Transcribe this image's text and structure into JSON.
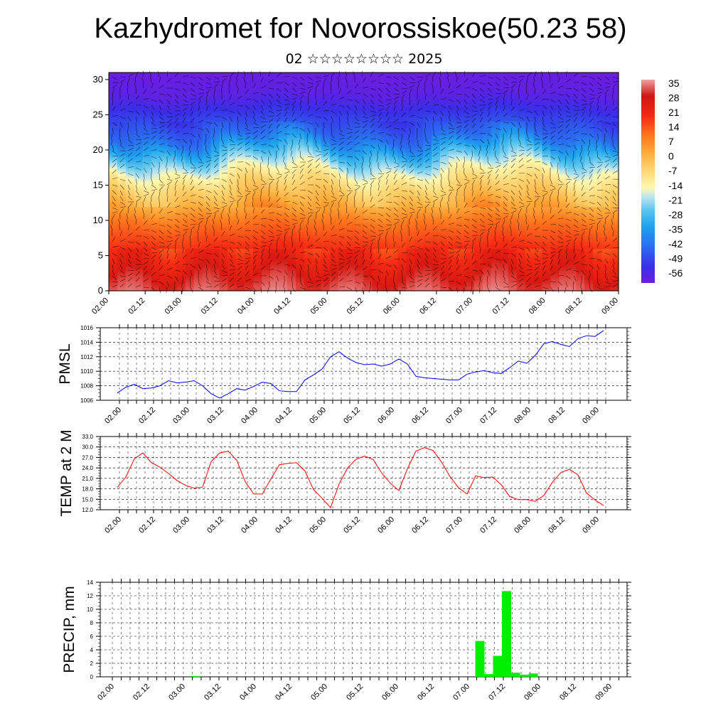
{
  "header": {
    "title": "Kazhydromet for Novorossiskoe(50.23 58)",
    "subtitle": "02 ☆☆☆☆☆☆☆☆ 2025"
  },
  "chart_data": [
    {
      "type": "heatmap",
      "title": "",
      "xlabel": "",
      "ylabel": "",
      "x_ticks": [
        "02.00",
        "02.12",
        "03.00",
        "03.12",
        "04.00",
        "04.12",
        "05.00",
        "05.12",
        "06.00",
        "06.12",
        "07.00",
        "07.12",
        "08.00",
        "08.12",
        "09.00"
      ],
      "y_ticks": [
        0,
        5,
        10,
        15,
        20,
        25,
        30
      ],
      "ylim": [
        0,
        31
      ],
      "colorbar": {
        "labels": [
          35,
          28,
          21,
          14,
          7,
          0,
          -7,
          -14,
          -21,
          -28,
          -35,
          -42,
          -49,
          -56
        ],
        "range": [
          -60,
          38
        ]
      },
      "temperature_profile": {
        "heights": [
          0,
          5,
          10,
          12,
          15,
          17,
          20,
          22,
          25,
          28,
          31
        ],
        "values": [
          33,
          22,
          12,
          5,
          -4,
          -12,
          -30,
          -42,
          -50,
          -58,
          -60
        ]
      },
      "overlay": "wind barbs"
    },
    {
      "type": "line",
      "ylabel": "PMSL",
      "ylim": [
        1006,
        1016
      ],
      "y_ticks": [
        1006,
        1008,
        1010,
        1012,
        1014,
        1016
      ],
      "x_ticks": [
        "02.00",
        "02.12",
        "03.00",
        "03.12",
        "04.00",
        "04.12",
        "05.00",
        "05.12",
        "06.00",
        "06.12",
        "07.00",
        "07.12",
        "08.00",
        "08.12",
        "09.00"
      ],
      "series": [
        {
          "color": "#0000ff",
          "values": [
            1007.0,
            1007.8,
            1008.2,
            1007.6,
            1007.7,
            1008.0,
            1008.7,
            1008.4,
            1008.5,
            1008.7,
            1008.0,
            1006.9,
            1006.3,
            1006.9,
            1007.6,
            1007.4,
            1007.9,
            1008.5,
            1008.3,
            1007.3,
            1007.2,
            1007.2,
            1008.8,
            1009.5,
            1010.3,
            1012.0,
            1012.7,
            1011.8,
            1011.2,
            1010.9,
            1011.0,
            1010.7,
            1011.0,
            1011.7,
            1011.0,
            1009.3,
            1009.1,
            1009.0,
            1008.9,
            1008.8,
            1008.8,
            1009.6,
            1009.9,
            1010.1,
            1009.8,
            1009.7,
            1010.5,
            1011.4,
            1011.1,
            1012.2,
            1013.8,
            1014.1,
            1013.7,
            1013.4,
            1014.5,
            1014.9,
            1014.8,
            1015.6
          ]
        }
      ]
    },
    {
      "type": "line",
      "ylabel": "TEMP at 2 M",
      "ylim": [
        12,
        33
      ],
      "y_ticks": [
        "12.0",
        "15.0",
        "18.0",
        "21.0",
        "24.0",
        "27.0",
        "30.0",
        "33.0"
      ],
      "x_ticks": [
        "02.00",
        "02.12",
        "03.00",
        "03.12",
        "04.00",
        "04.12",
        "05.00",
        "05.12",
        "06.00",
        "06.12",
        "07.00",
        "07.12",
        "08.00",
        "08.12",
        "09.00"
      ],
      "series": [
        {
          "color": "#ff0000",
          "values": [
            18.4,
            21.4,
            26.6,
            28.3,
            25.5,
            24.2,
            22.4,
            20.4,
            19.0,
            18.2,
            18.5,
            25.8,
            28.3,
            28.8,
            26.2,
            20.0,
            16.5,
            16.5,
            20.8,
            24.9,
            25.3,
            25.5,
            23.1,
            17.8,
            15.3,
            12.6,
            19.4,
            24.0,
            26.5,
            27.4,
            26.4,
            22.5,
            19.6,
            17.5,
            23.7,
            28.8,
            29.8,
            29.0,
            25.7,
            21.5,
            18.3,
            16.5,
            21.7,
            21.2,
            21.4,
            19.2,
            15.8,
            14.9,
            14.9,
            14.4,
            16.1,
            19.9,
            22.7,
            23.6,
            22.0,
            16.8,
            14.8,
            13.2
          ]
        }
      ]
    },
    {
      "type": "bar",
      "ylabel": "PRECIP, mm",
      "ylim": [
        0,
        14
      ],
      "y_ticks": [
        0,
        2,
        4,
        6,
        8,
        10,
        12,
        14
      ],
      "x_ticks": [
        "02.00",
        "02.12",
        "03.00",
        "03.12",
        "04.00",
        "04.12",
        "05.00",
        "05.12",
        "06.00",
        "06.12",
        "07.00",
        "07.12",
        "08.00",
        "08.12",
        "09.00"
      ],
      "color": "#00ee00",
      "bars": [
        {
          "x": 9,
          "value": 0.1
        },
        {
          "x": 41,
          "value": 5.3
        },
        {
          "x": 42,
          "value": 0.4
        },
        {
          "x": 43,
          "value": 3.1
        },
        {
          "x": 44,
          "value": 12.7
        },
        {
          "x": 45,
          "value": 0.6
        },
        {
          "x": 46,
          "value": 0.3
        },
        {
          "x": 47,
          "value": 0.5
        }
      ]
    }
  ]
}
